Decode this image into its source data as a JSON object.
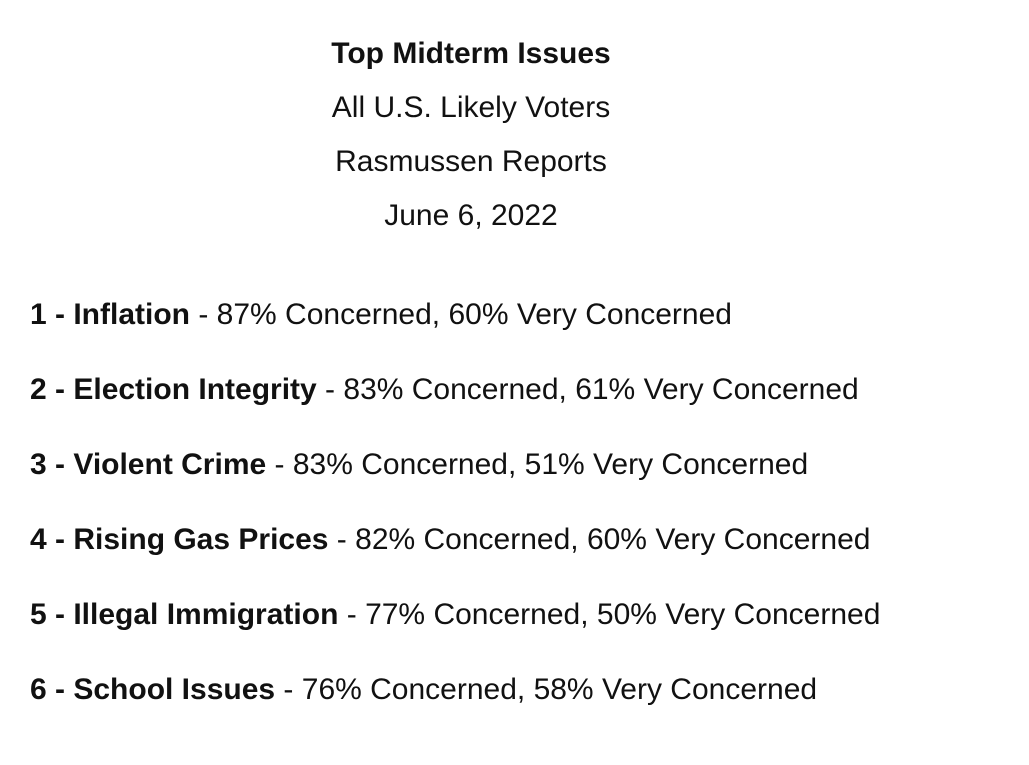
{
  "header": {
    "title": "Top Midterm Issues",
    "audience": "All U.S. Likely Voters",
    "source": "Rasmussen Reports",
    "date": "June 6, 2022"
  },
  "issues": [
    {
      "rank": 1,
      "name": "Inflation",
      "concerned_pct": 87,
      "very_concerned_pct": 60,
      "label": "1 - Inflation",
      "detail": " - 87% Concerned, 60% Very Concerned"
    },
    {
      "rank": 2,
      "name": "Election Integrity",
      "concerned_pct": 83,
      "very_concerned_pct": 61,
      "label": "2 - Election Integrity",
      "detail": " - 83% Concerned, 61% Very Concerned"
    },
    {
      "rank": 3,
      "name": "Violent Crime",
      "concerned_pct": 83,
      "very_concerned_pct": 51,
      "label": "3 - Violent Crime",
      "detail": " - 83% Concerned, 51% Very Concerned"
    },
    {
      "rank": 4,
      "name": "Rising Gas Prices",
      "concerned_pct": 82,
      "very_concerned_pct": 60,
      "label": "4 - Rising Gas Prices",
      "detail": " - 82% Concerned, 60% Very Concerned"
    },
    {
      "rank": 5,
      "name": "Illegal Immigration",
      "concerned_pct": 77,
      "very_concerned_pct": 50,
      "label": "5 - Illegal Immigration",
      "detail": " - 77% Concerned, 50% Very Concerned"
    },
    {
      "rank": 6,
      "name": "School Issues",
      "concerned_pct": 76,
      "very_concerned_pct": 58,
      "label": "6 - School Issues",
      "detail": " - 76% Concerned, 58% Very Concerned"
    }
  ],
  "colors": {
    "background": "#ffffff",
    "text": "#111111"
  }
}
